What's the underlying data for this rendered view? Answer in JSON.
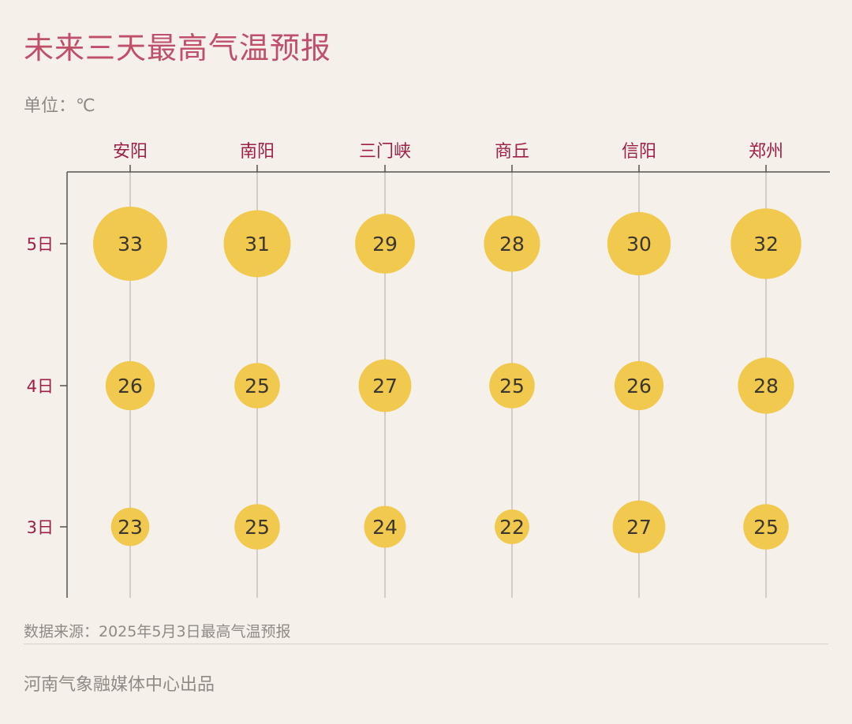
{
  "header": {
    "title": "未来三天最高气温预报",
    "unit": "单位：℃"
  },
  "footer": {
    "source": "数据来源：2025年5月3日最高气温预报",
    "credit": "河南气象融媒体中心出品"
  },
  "colors": {
    "bubble": "#f0c94e",
    "axis_label": "#9e1f45",
    "title": "#c0506a",
    "gridline": "#c6c1bb",
    "axis": "#55524f",
    "value_text": "#3b3630"
  },
  "chart_data": {
    "type": "bubble",
    "title": "未来三天最高气温预报",
    "unit": "℃",
    "x_axis_position": "top",
    "categories": [
      "安阳",
      "南阳",
      "三门峡",
      "商丘",
      "信阳",
      "郑州"
    ],
    "rows": [
      "5日",
      "4日",
      "3日"
    ],
    "series": [
      {
        "name": "5日",
        "values": [
          33,
          31,
          29,
          28,
          30,
          32
        ]
      },
      {
        "name": "4日",
        "values": [
          26,
          25,
          27,
          25,
          26,
          28
        ]
      },
      {
        "name": "3日",
        "values": [
          23,
          25,
          24,
          22,
          27,
          25
        ]
      }
    ]
  }
}
